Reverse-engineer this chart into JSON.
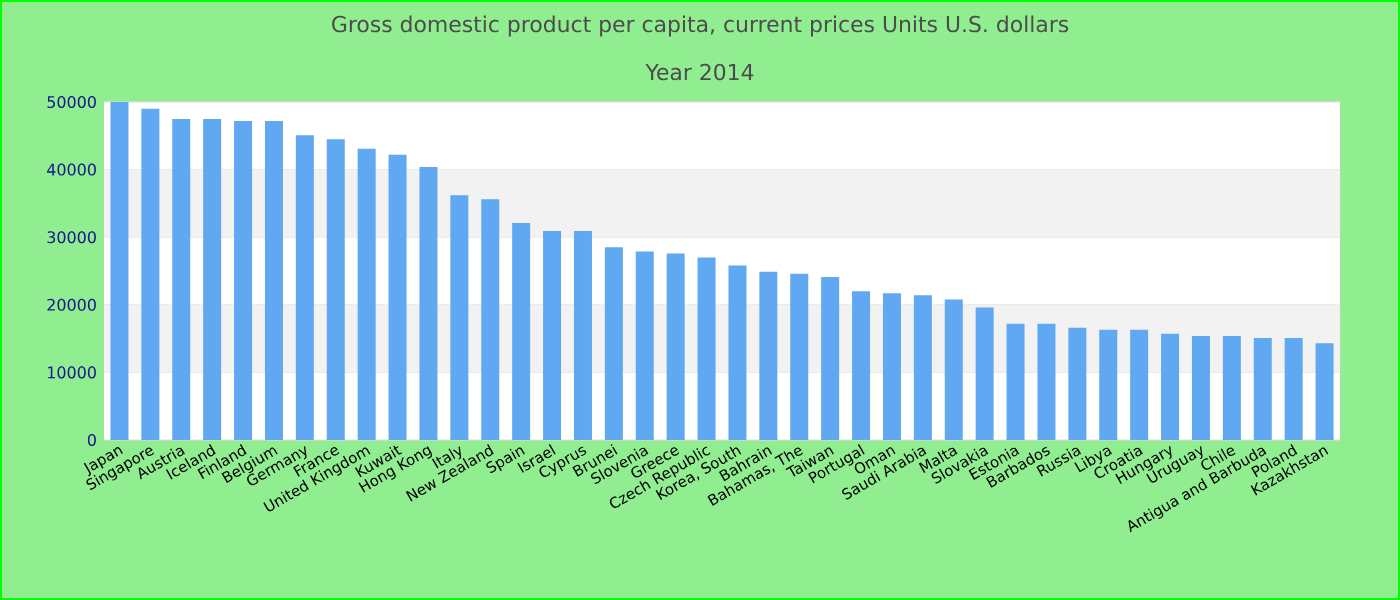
{
  "chart_data": {
    "type": "bar",
    "title": "Gross domestic product per capita, current prices Units U.S. dollars",
    "subtitle": "Year 2014",
    "categories": [
      "Japan",
      "Singapore",
      "Austria",
      "Iceland",
      "Finland",
      "Belgium",
      "Germany",
      "France",
      "United Kingdom",
      "Kuwait",
      "Hong Kong",
      "Italy",
      "New Zealand",
      "Spain",
      "Israel",
      "Cyprus",
      "Brunei",
      "Slovenia",
      "Greece",
      "Czech Republic",
      "Korea, South",
      "Bahrain",
      "Bahamas, The",
      "Taiwan",
      "Portugal",
      "Oman",
      "Saudi Arabia",
      "Malta",
      "Slovakia",
      "Estonia",
      "Barbados",
      "Russia",
      "Libya",
      "Croatia",
      "Hungary",
      "Uruguay",
      "Chile",
      "Antigua and Barbuda",
      "Poland",
      "Kazakhstan"
    ],
    "values": [
      50000,
      49000,
      47500,
      47500,
      47200,
      47200,
      45100,
      44500,
      43100,
      42200,
      40400,
      36200,
      35600,
      32100,
      30900,
      30900,
      28500,
      27900,
      27600,
      27000,
      25800,
      24900,
      24600,
      24100,
      22000,
      21700,
      21400,
      20800,
      19600,
      17200,
      17200,
      16600,
      16300,
      16300,
      15700,
      15400,
      15400,
      15100,
      15100,
      14300
    ],
    "color": "#60a8f2",
    "ylim": [
      0,
      50000
    ],
    "yticks": [
      0,
      10000,
      20000,
      30000,
      40000,
      50000
    ],
    "grid": "y"
  }
}
